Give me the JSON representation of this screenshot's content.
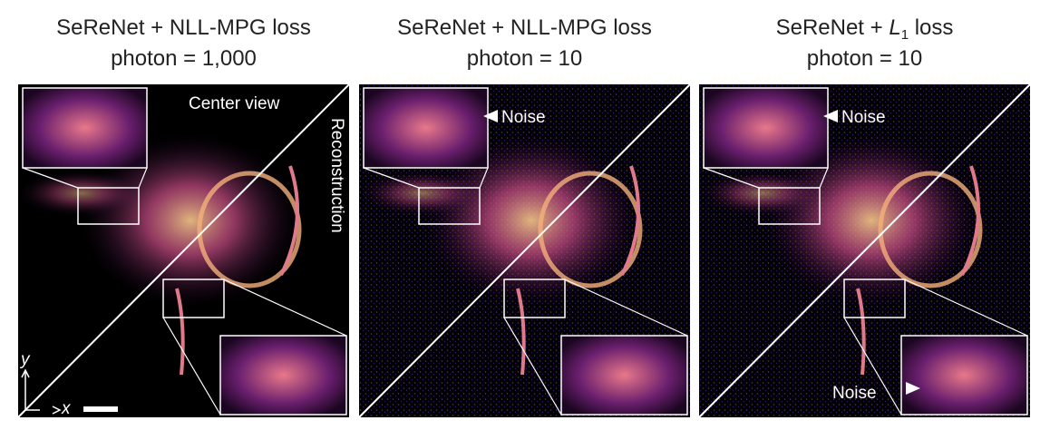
{
  "panels": [
    {
      "title": "SeReNet + NLL-MPG loss",
      "subtitle": "photon = 1,000",
      "center_label": "Center view",
      "recon_label": "Reconstruction",
      "axis_y": "y",
      "axis_x": "x"
    },
    {
      "title": "SeReNet + NLL-MPG loss",
      "subtitle": "photon = 10",
      "noise_top": "Noise"
    },
    {
      "title": {
        "prefix": "SeReNet + ",
        "italic": "L",
        "subscript": "1",
        "suffix": " loss"
      },
      "subtitle": "photon = 10",
      "noise_top": "Noise",
      "noise_bottom": "Noise"
    }
  ]
}
